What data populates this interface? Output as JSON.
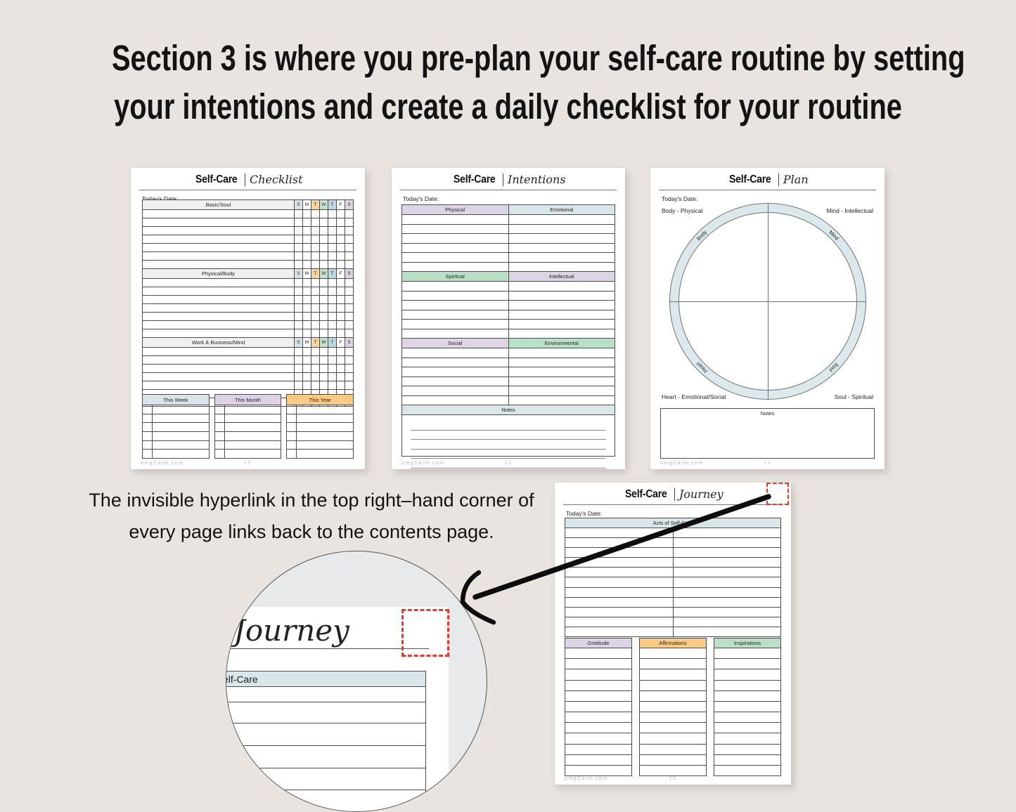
{
  "title": {
    "line1": "Section 3 is where you pre-plan your self-care routine by setting",
    "line2": "your intentions and create a daily checklist for your routine"
  },
  "caption": {
    "line1": "The invisible hyperlink in the top right–hand corner of",
    "line2": "every page links back to the contents page."
  },
  "days": {
    "letters": [
      "S",
      "M",
      "T",
      "W",
      "T",
      "F",
      "S"
    ],
    "colors": [
      "#d8e3e9",
      "#ffffff",
      "#fbd49b",
      "#c6e3ce",
      "#b9d8e2",
      "#ffffff",
      "#ded5e8"
    ]
  },
  "checklist": {
    "brand": "Self-Care",
    "script": "Checklist",
    "date_label": "Today's Date:",
    "section_bg": "#f1f0ef",
    "sections": [
      {
        "label": "Basic/Soul",
        "rows": 7
      },
      {
        "label": "Physical/Body",
        "rows": 7
      },
      {
        "label": "Work & Business/Mind",
        "rows": 7
      }
    ],
    "bottom_tables": [
      {
        "label": "This Week",
        "color": "#d9e4e9",
        "rows": 6
      },
      {
        "label": "This Month",
        "color": "#ded3e6",
        "rows": 6
      },
      {
        "label": "This Year",
        "color": "#fbca85",
        "rows": 6
      }
    ],
    "footer": {
      "site": "omgCalm.com",
      "page": "15"
    }
  },
  "intentions": {
    "brand": "Self-Care",
    "script": "Intentions",
    "date_label": "Today's Date:",
    "bands": [
      {
        "left": {
          "label": "Physical",
          "color": "#ded5e4"
        },
        "right": {
          "label": "Emotional",
          "color": "#d9e6ea"
        },
        "rows": 6
      },
      {
        "left": {
          "label": "Spiritual",
          "color": "#b9e0c6"
        },
        "right": {
          "label": "Intellectual",
          "color": "#ded5e4"
        },
        "rows": 6
      },
      {
        "left": {
          "label": "Social",
          "color": "#ded5e4"
        },
        "right": {
          "label": "Environmental",
          "color": "#b9e0c6"
        },
        "rows": 6
      }
    ],
    "notes": {
      "label": "Notes",
      "color": "#d9e6ea",
      "lines": 5
    },
    "footer": {
      "site": "omgCalm.com",
      "page": "12"
    }
  },
  "plan": {
    "brand": "Self-Care",
    "script": "Plan",
    "date_label": "Today's Date:",
    "ring_color": "#dce8ec",
    "corner_labels": {
      "top_left": "Body - Physical",
      "top_right": "Mind - Intellectual",
      "bottom_left": "Heart - Emotional/Social",
      "bottom_right": "Soul - Spiritual"
    },
    "ring_labels": {
      "top_left": "Body",
      "top_right": "Mind",
      "bottom_left": "Heart",
      "bottom_right": "Soul"
    },
    "notes_label": "Notes",
    "footer": {
      "site": "omgCalm.com",
      "page": "14"
    }
  },
  "journey": {
    "brand": "Self-Care",
    "script": "Journey",
    "date_label": "Today's Date:",
    "acts": {
      "label": "Acts of Self-Care",
      "color": "#d9e6ea",
      "rows": 11
    },
    "columns": [
      {
        "label": "Gratitude",
        "color": "#ded3e6",
        "rows": 12
      },
      {
        "label": "Affirmations",
        "color": "#fbca85",
        "rows": 12
      },
      {
        "label": "Inspirations",
        "color": "#b9e0c6",
        "rows": 12
      }
    ],
    "footer": {
      "site": "omgCalm.com",
      "page": "13"
    }
  },
  "inset": {
    "script": "Journey",
    "partial_header": "elf-Care"
  }
}
